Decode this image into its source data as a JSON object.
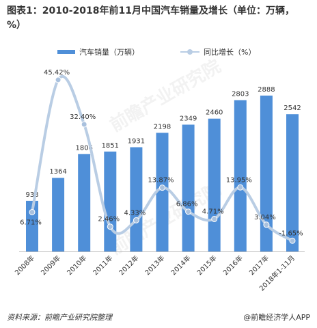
{
  "title": "图表1：2010-2018年前11月中国汽车销量及增长（单位：万辆，%）",
  "legend": {
    "bar_label": "汽车销量（万辆）",
    "line_label": "同比增长（%）"
  },
  "source": "资料来源：前瞻产业研究院整理",
  "brand": "@前瞻经济学人APP",
  "watermark": "前瞻产业研究院",
  "colors": {
    "bar": "#4f8fd8",
    "line": "#b9cde4",
    "point": "#a9c1de"
  },
  "chart_data": {
    "type": "bar",
    "categories": [
      "2008年",
      "2009年",
      "2010年",
      "2011年",
      "2012年",
      "2013年",
      "2014年",
      "2015年",
      "2016年",
      "2017年",
      "2018年1-11月"
    ],
    "series": [
      {
        "name": "汽车销量（万辆）",
        "type": "bar",
        "values": [
          938,
          1364,
          1806,
          1851,
          1931,
          2198,
          2349,
          2460,
          2803,
          2888,
          2542
        ],
        "labels": [
          "938",
          "1364",
          "1806",
          "1851",
          "1931",
          "2198",
          "2349",
          "2460",
          "2803",
          "2888",
          "2542"
        ]
      },
      {
        "name": "同比增长（%）",
        "type": "line",
        "values": [
          6.71,
          45.42,
          32.4,
          2.46,
          4.33,
          13.87,
          6.86,
          4.71,
          13.95,
          3.04,
          -1.65
        ],
        "labels": [
          "6.71%",
          "45.42%",
          "32.40%",
          "2.46%",
          "4.33%",
          "13.87%",
          "6.86%",
          "4.71%",
          "13.95%",
          "3.04%",
          "-1.65%"
        ]
      }
    ]
  }
}
